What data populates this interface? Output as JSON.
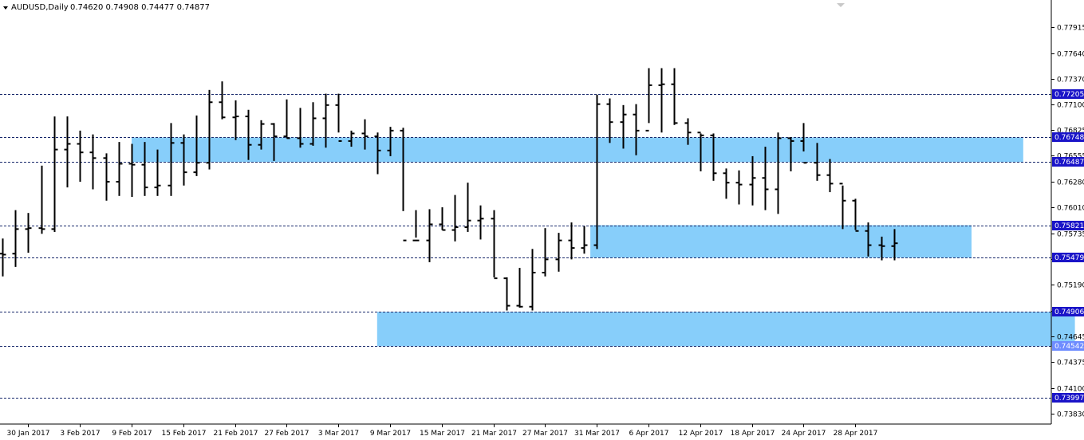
{
  "header": {
    "symbol": "AUDUSD,Daily",
    "ohlc": "0.74620 0.74908 0.74477 0.74877"
  },
  "colors": {
    "background": "#ffffff",
    "bars": "#000000",
    "zone_fill": "#87cefa",
    "level_line": "#1a2a6c",
    "level_tag": "#1a14c8",
    "level_tag_light": "#6e8cff"
  },
  "chart_data": {
    "type": "ohlc-bar",
    "symbol": "AUDUSD",
    "timeframe": "Daily",
    "y_range": [
      0.7372,
      0.782
    ],
    "y_ticks": [
      "0.77915",
      "0.77640",
      "0.77370",
      "0.77100",
      "0.76825",
      "0.76555",
      "0.76280",
      "0.76010",
      "0.75735",
      "0.75465",
      "0.75190",
      "0.74920",
      "0.74645",
      "0.74375",
      "0.74100",
      "0.73830"
    ],
    "x_ticks": [
      {
        "label": "30 Jan 2017",
        "bar": 2
      },
      {
        "label": "3 Feb 2017",
        "bar": 6
      },
      {
        "label": "9 Feb 2017",
        "bar": 10
      },
      {
        "label": "15 Feb 2017",
        "bar": 14
      },
      {
        "label": "21 Feb 2017",
        "bar": 18
      },
      {
        "label": "27 Feb 2017",
        "bar": 22
      },
      {
        "label": "3 Mar 2017",
        "bar": 26
      },
      {
        "label": "9 Mar 2017",
        "bar": 30
      },
      {
        "label": "15 Mar 2017",
        "bar": 34
      },
      {
        "label": "21 Mar 2017",
        "bar": 38
      },
      {
        "label": "27 Mar 2017",
        "bar": 42
      },
      {
        "label": "31 Mar 2017",
        "bar": 46
      },
      {
        "label": "6 Apr 2017",
        "bar": 50
      },
      {
        "label": "12 Apr 2017",
        "bar": 54
      },
      {
        "label": "18 Apr 2017",
        "bar": 58
      },
      {
        "label": "24 Apr 2017",
        "bar": 62
      },
      {
        "label": "28 Apr 2017",
        "bar": 66
      }
    ],
    "levels": [
      {
        "value": 0.77205,
        "label": "0.77205",
        "style": "dark"
      },
      {
        "value": 0.76748,
        "label": "0.76748",
        "style": "dark"
      },
      {
        "value": 0.76487,
        "label": "0.76487",
        "style": "dark"
      },
      {
        "value": 0.75821,
        "label": "0.75821",
        "style": "dark"
      },
      {
        "value": 0.75479,
        "label": "0.75479",
        "style": "dark"
      },
      {
        "value": 0.74906,
        "label": "0.74906",
        "style": "dark"
      },
      {
        "value": 0.74542,
        "label": "0.74542",
        "style": "light"
      },
      {
        "value": 0.73997,
        "label": "0.73997",
        "style": "dark"
      }
    ],
    "zones": [
      {
        "from_bar": 10,
        "to_bar": 79,
        "top": 0.76748,
        "bottom": 0.76487
      },
      {
        "from_bar": 45.5,
        "to_bar": 75,
        "top": 0.75821,
        "bottom": 0.75479
      },
      {
        "from_bar": 29,
        "to_bar": 83,
        "top": 0.74906,
        "bottom": 0.74542
      }
    ],
    "bars": [
      [
        0.7552,
        0.7568,
        0.7528,
        0.7551
      ],
      [
        0.7552,
        0.7598,
        0.7538,
        0.7578
      ],
      [
        0.7578,
        0.7595,
        0.7553,
        0.7579
      ],
      [
        0.7579,
        0.7645,
        0.7573,
        0.7578
      ],
      [
        0.7578,
        0.7697,
        0.7575,
        0.7662
      ],
      [
        0.7662,
        0.7697,
        0.7622,
        0.7668
      ],
      [
        0.7668,
        0.7682,
        0.7628,
        0.7659
      ],
      [
        0.7659,
        0.7678,
        0.762,
        0.7653
      ],
      [
        0.7653,
        0.7658,
        0.7608,
        0.7628
      ],
      [
        0.7628,
        0.767,
        0.7613,
        0.7647
      ],
      [
        0.7647,
        0.7668,
        0.7612,
        0.7646
      ],
      [
        0.7646,
        0.767,
        0.7613,
        0.7622
      ],
      [
        0.7622,
        0.7662,
        0.7613,
        0.7624
      ],
      [
        0.7624,
        0.769,
        0.7613,
        0.7669
      ],
      [
        0.7669,
        0.7678,
        0.7624,
        0.7638
      ],
      [
        0.7638,
        0.7698,
        0.7634,
        0.7648
      ],
      [
        0.7648,
        0.7725,
        0.7641,
        0.7712
      ],
      [
        0.7712,
        0.7734,
        0.7694,
        0.7696
      ],
      [
        0.7696,
        0.7714,
        0.7672,
        0.7697
      ],
      [
        0.7697,
        0.7704,
        0.7651,
        0.7667
      ],
      [
        0.7667,
        0.7693,
        0.7662,
        0.7689
      ],
      [
        0.7689,
        0.769,
        0.765,
        0.7676
      ],
      [
        0.7676,
        0.7715,
        0.7674,
        0.7674
      ],
      [
        0.7674,
        0.7706,
        0.7664,
        0.7668
      ],
      [
        0.7668,
        0.7712,
        0.7666,
        0.7695
      ],
      [
        0.7695,
        0.7721,
        0.7664,
        0.7709
      ],
      [
        0.7709,
        0.7721,
        0.768,
        0.7671
      ],
      [
        0.7671,
        0.7682,
        0.7665,
        0.7679
      ],
      [
        0.7679,
        0.7694,
        0.7662,
        0.7676
      ],
      [
        0.7676,
        0.768,
        0.7636,
        0.7661
      ],
      [
        0.7661,
        0.7686,
        0.7655,
        0.7682
      ],
      [
        0.7682,
        0.7685,
        0.7597,
        0.7566
      ],
      [
        0.7566,
        0.7598,
        0.7569,
        0.7566
      ],
      [
        0.7566,
        0.7599,
        0.7543,
        0.7583
      ],
      [
        0.7583,
        0.7601,
        0.7577,
        0.7577
      ],
      [
        0.7577,
        0.7614,
        0.7565,
        0.758
      ],
      [
        0.758,
        0.7627,
        0.7575,
        0.7587
      ],
      [
        0.7587,
        0.7603,
        0.7567,
        0.7589
      ],
      [
        0.7589,
        0.7598,
        0.7527,
        0.7526
      ],
      [
        0.7526,
        0.7527,
        0.7492,
        0.7497
      ],
      [
        0.7497,
        0.7537,
        0.7495,
        0.7496
      ],
      [
        0.7496,
        0.7557,
        0.7492,
        0.7532
      ],
      [
        0.7532,
        0.7579,
        0.7528,
        0.7546
      ],
      [
        0.7546,
        0.7574,
        0.7533,
        0.7566
      ],
      [
        0.7566,
        0.7585,
        0.7546,
        0.7558
      ],
      [
        0.7558,
        0.7581,
        0.7552,
        0.7561
      ],
      [
        0.7561,
        0.772,
        0.7557,
        0.771
      ],
      [
        0.771,
        0.7716,
        0.7669,
        0.7691
      ],
      [
        0.7691,
        0.7709,
        0.7663,
        0.7699
      ],
      [
        0.7699,
        0.771,
        0.7656,
        0.7682
      ],
      [
        0.7682,
        0.7748,
        0.769,
        0.773
      ],
      [
        0.773,
        0.7748,
        0.768,
        0.7731
      ],
      [
        0.7731,
        0.7748,
        0.7688,
        0.769
      ],
      [
        0.769,
        0.7695,
        0.7667,
        0.768
      ],
      [
        0.768,
        0.7679,
        0.7639,
        0.7677
      ],
      [
        0.7677,
        0.7679,
        0.7629,
        0.7637
      ],
      [
        0.7637,
        0.7642,
        0.761,
        0.7627
      ],
      [
        0.7627,
        0.764,
        0.7604,
        0.7625
      ],
      [
        0.7625,
        0.7655,
        0.7603,
        0.7632
      ],
      [
        0.7632,
        0.7665,
        0.7598,
        0.762
      ],
      [
        0.762,
        0.768,
        0.7594,
        0.7674
      ],
      [
        0.7674,
        0.7675,
        0.7639,
        0.7671
      ],
      [
        0.7671,
        0.769,
        0.766,
        0.7648
      ],
      [
        0.7648,
        0.7669,
        0.7629,
        0.7635
      ],
      [
        0.7635,
        0.7652,
        0.7617,
        0.7626
      ],
      [
        0.7626,
        0.7624,
        0.7578,
        0.7608
      ],
      [
        0.7608,
        0.761,
        0.7577,
        0.7576
      ],
      [
        0.7576,
        0.7585,
        0.7549,
        0.7561
      ],
      [
        0.7561,
        0.757,
        0.7545,
        0.756
      ],
      [
        0.756,
        0.7578,
        0.7545,
        0.7563
      ]
    ]
  }
}
